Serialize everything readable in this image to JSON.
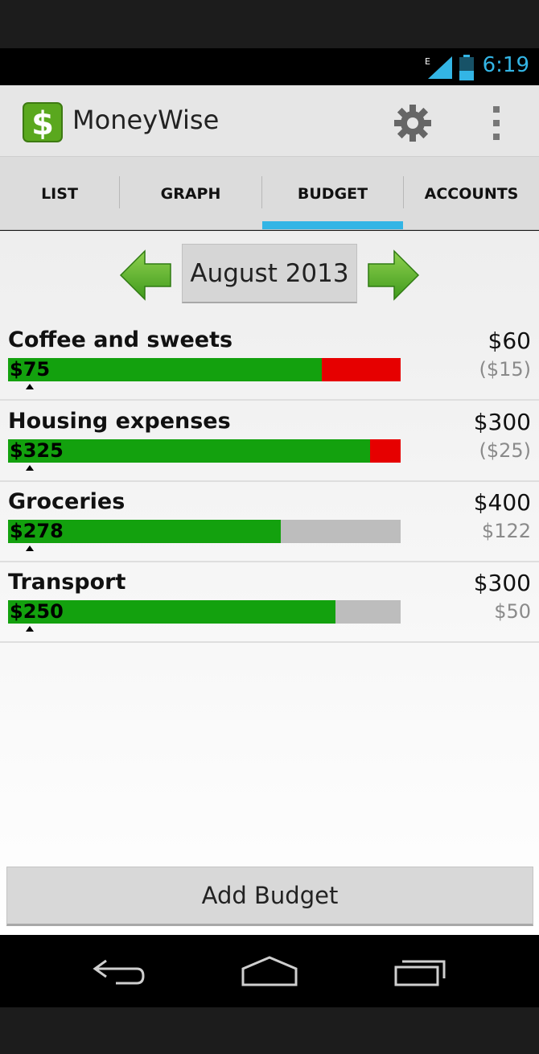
{
  "status_bar": {
    "time": "6:19",
    "network_label": "E",
    "icons": [
      "signal-icon",
      "battery-icon"
    ],
    "accent_color": "#33b5e5"
  },
  "app_bar": {
    "title": "MoneyWise",
    "logo_icon": "dollar-icon",
    "logo_color": "#5aa81e",
    "actions": [
      "gear-icon",
      "overflow-menu-icon"
    ]
  },
  "tabs": [
    {
      "label": "LIST",
      "selected": false
    },
    {
      "label": "GRAPH",
      "selected": false
    },
    {
      "label": "BUDGET",
      "selected": true
    },
    {
      "label": "ACCOUNTS",
      "selected": false
    }
  ],
  "month_nav": {
    "label": "August 2013",
    "prev_icon": "arrow-left-icon",
    "next_icon": "arrow-right-icon"
  },
  "budgets": [
    {
      "name": "Coffee and sweets",
      "spent": "$75",
      "budget": "$60",
      "remaining": "($15)",
      "spent_fraction": 1.25,
      "over": true
    },
    {
      "name": "Housing expenses",
      "spent": "$325",
      "budget": "$300",
      "remaining": "($25)",
      "spent_fraction": 1.0833,
      "over": true
    },
    {
      "name": "Groceries",
      "spent": "$278",
      "budget": "$400",
      "remaining": "$122",
      "spent_fraction": 0.695,
      "over": false
    },
    {
      "name": "Transport",
      "spent": "$250",
      "budget": "$300",
      "remaining": "$50",
      "spent_fraction": 0.8333,
      "over": false
    }
  ],
  "colors": {
    "spent": "#13a10e",
    "over": "#e60000",
    "unspent": "#bdbdbd"
  },
  "add_button": {
    "label": "Add Budget"
  },
  "nav_bar": {
    "icons": [
      "back-icon",
      "home-icon",
      "recent-apps-icon"
    ]
  }
}
